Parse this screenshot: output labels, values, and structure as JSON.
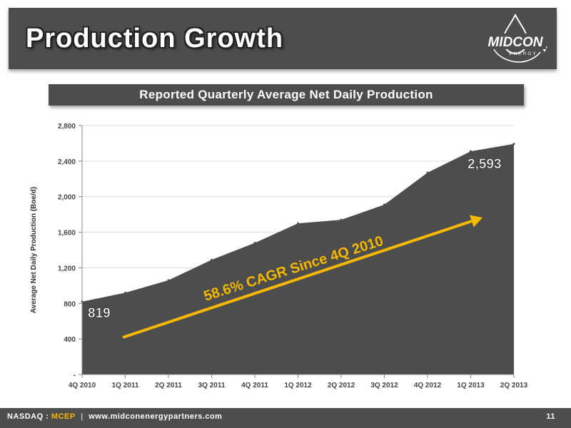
{
  "header": {
    "title": "Production Growth"
  },
  "logo": {
    "text_mid": "MID",
    "text_con": "CON",
    "text_energy": "ENERGY"
  },
  "subtitle": "Reported Quarterly Average Net Daily Production",
  "footer": {
    "exchange": "NASDAQ :",
    "ticker": "MCEP",
    "separator": "|",
    "website": "www.midconenergypartners.com",
    "page_number": "11"
  },
  "colors": {
    "area": "#4d4d4d",
    "arrow": "#f5b800",
    "header_bg": "#4d4d4d",
    "footer_ticker": "#f5b800"
  },
  "chart_data": {
    "type": "area",
    "categories": [
      "4Q 2010",
      "1Q 2011",
      "2Q 2011",
      "3Q 2011",
      "4Q 2011",
      "1Q 2012",
      "2Q 2012",
      "3Q 2012",
      "4Q 2012",
      "1Q 2013",
      "2Q 2013"
    ],
    "values": [
      819,
      920,
      1060,
      1290,
      1480,
      1700,
      1740,
      1910,
      2270,
      2510,
      2593
    ],
    "ylabel": "Average Net Daily Production (Boe/d)",
    "ylim": [
      0,
      2800
    ],
    "y_ticks": [
      0,
      400,
      800,
      1200,
      1600,
      2000,
      2400,
      2800
    ],
    "y_tick_labels": [
      "-",
      "400",
      "800",
      "1,200",
      "1,600",
      "2,000",
      "2,400",
      "2,800"
    ],
    "grid": true,
    "annotations": {
      "start_label": "819",
      "end_label": "2,593",
      "cagr_text": "58.6% CAGR Since 4Q 2010"
    }
  }
}
